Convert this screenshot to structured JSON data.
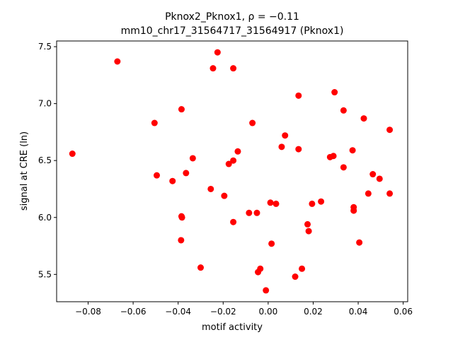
{
  "chart_data": {
    "type": "scatter",
    "title_line1": "Pknox2_Pknox1, ρ = −0.11",
    "title_line2": "mm10_chr17_31564717_31564917 (Pknox1)",
    "xlabel": "motif activity",
    "ylabel": "signal at CRE (ln)",
    "xlim": [
      -0.094,
      0.062
    ],
    "ylim": [
      5.26,
      7.55
    ],
    "xticks": [
      -0.08,
      -0.06,
      -0.04,
      -0.02,
      0.0,
      0.02,
      0.04,
      0.06
    ],
    "xtick_labels": [
      "−0.08",
      "−0.06",
      "−0.04",
      "−0.02",
      "0.00",
      "0.02",
      "0.04",
      "0.06"
    ],
    "yticks": [
      5.5,
      6.0,
      6.5,
      7.0,
      7.5
    ],
    "ytick_labels": [
      "5.5",
      "6.0",
      "6.5",
      "7.0",
      "7.5"
    ],
    "grid": false,
    "marker_color": "#ff0000",
    "points": [
      {
        "x": -0.087,
        "y": 6.56
      },
      {
        "x": -0.067,
        "y": 7.37
      },
      {
        "x": -0.0505,
        "y": 6.83
      },
      {
        "x": -0.0495,
        "y": 6.37
      },
      {
        "x": -0.0425,
        "y": 6.32
      },
      {
        "x": -0.0385,
        "y": 6.95
      },
      {
        "x": -0.0385,
        "y": 6.01
      },
      {
        "x": -0.0383,
        "y": 6.0
      },
      {
        "x": -0.0387,
        "y": 5.8
      },
      {
        "x": -0.0365,
        "y": 6.39
      },
      {
        "x": -0.0335,
        "y": 6.52
      },
      {
        "x": -0.03,
        "y": 5.56
      },
      {
        "x": -0.0245,
        "y": 7.31
      },
      {
        "x": -0.0225,
        "y": 7.45
      },
      {
        "x": -0.0255,
        "y": 6.25
      },
      {
        "x": -0.0195,
        "y": 6.19
      },
      {
        "x": -0.0175,
        "y": 6.47
      },
      {
        "x": -0.0155,
        "y": 7.31
      },
      {
        "x": -0.0155,
        "y": 6.5
      },
      {
        "x": -0.0135,
        "y": 6.58
      },
      {
        "x": -0.0155,
        "y": 5.96
      },
      {
        "x": -0.0085,
        "y": 6.04
      },
      {
        "x": -0.007,
        "y": 6.83
      },
      {
        "x": -0.005,
        "y": 6.04
      },
      {
        "x": -0.0045,
        "y": 5.52
      },
      {
        "x": -0.0035,
        "y": 5.55
      },
      {
        "x": -0.001,
        "y": 5.36
      },
      {
        "x": 0.001,
        "y": 6.13
      },
      {
        "x": 0.0015,
        "y": 5.77
      },
      {
        "x": 0.0035,
        "y": 6.12
      },
      {
        "x": 0.006,
        "y": 6.62
      },
      {
        "x": 0.0075,
        "y": 6.72
      },
      {
        "x": 0.012,
        "y": 5.48
      },
      {
        "x": 0.0135,
        "y": 7.07
      },
      {
        "x": 0.0135,
        "y": 6.6
      },
      {
        "x": 0.015,
        "y": 5.55
      },
      {
        "x": 0.0175,
        "y": 5.94
      },
      {
        "x": 0.018,
        "y": 5.88
      },
      {
        "x": 0.0195,
        "y": 6.12
      },
      {
        "x": 0.0235,
        "y": 6.14
      },
      {
        "x": 0.0275,
        "y": 6.53
      },
      {
        "x": 0.029,
        "y": 6.54
      },
      {
        "x": 0.0295,
        "y": 7.1
      },
      {
        "x": 0.0335,
        "y": 6.94
      },
      {
        "x": 0.0335,
        "y": 6.44
      },
      {
        "x": 0.0375,
        "y": 6.59
      },
      {
        "x": 0.038,
        "y": 6.09
      },
      {
        "x": 0.038,
        "y": 6.06
      },
      {
        "x": 0.0405,
        "y": 5.78
      },
      {
        "x": 0.0425,
        "y": 6.87
      },
      {
        "x": 0.0445,
        "y": 6.21
      },
      {
        "x": 0.0465,
        "y": 6.38
      },
      {
        "x": 0.0495,
        "y": 6.34
      },
      {
        "x": 0.054,
        "y": 6.77
      },
      {
        "x": 0.054,
        "y": 6.21
      }
    ]
  }
}
